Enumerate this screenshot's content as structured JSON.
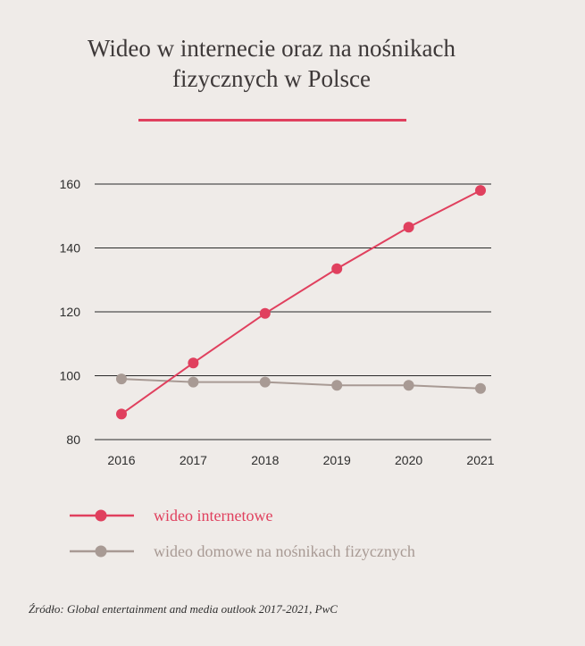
{
  "chart_data": {
    "type": "line",
    "title_lines": [
      "Wideo w internecie oraz na nośnikach",
      "fizycznych w Polsce"
    ],
    "categories": [
      "2016",
      "2017",
      "2018",
      "2019",
      "2020",
      "2021"
    ],
    "ylim": [
      80,
      160
    ],
    "yticks": [
      80,
      100,
      120,
      140,
      160
    ],
    "grid": true,
    "legend_position": "bottom-left",
    "series": [
      {
        "name": "wideo internetowe",
        "color": "#e0405e",
        "values": [
          88,
          104,
          119.5,
          133.5,
          146.5,
          158
        ]
      },
      {
        "name": "wideo domowe na nośnikach fizycznych",
        "color": "#a89a94",
        "values": [
          99,
          98,
          98,
          97,
          97,
          96
        ]
      }
    ],
    "source": "Źródło: Global entertainment and media outlook 2017-2021, PwC"
  },
  "colors": {
    "background": "#efebe8",
    "accent": "#e0405e",
    "grid": "#2a2a2a"
  }
}
